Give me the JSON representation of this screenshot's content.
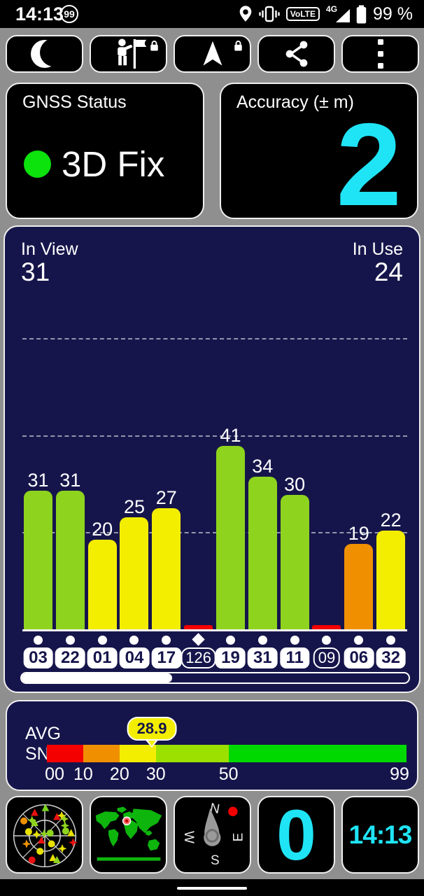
{
  "status_bar": {
    "time": "14:13",
    "battery_badge": "99",
    "volte": "VoLTE",
    "network": "4G",
    "battery_percent": "99 %",
    "icons": [
      "location-icon",
      "vibrate-icon",
      "signal-strength-icon",
      "battery-icon"
    ]
  },
  "toolbar": {
    "buttons": [
      {
        "name": "night-mode",
        "icon": "moon-icon",
        "locked": false
      },
      {
        "name": "waypoints",
        "icon": "person-flag-icon",
        "locked": true
      },
      {
        "name": "navigation",
        "icon": "nav-arrow-icon",
        "locked": true
      },
      {
        "name": "share",
        "icon": "share-icon",
        "locked": false
      },
      {
        "name": "overflow-menu",
        "icon": "overflow-dots-icon",
        "locked": false
      }
    ]
  },
  "gnss_card": {
    "title": "GNSS Status",
    "status": "3D Fix",
    "dot_color": "#0ce20c"
  },
  "accuracy_card": {
    "title": "Accuracy (± m)",
    "value": "2",
    "value_color": "#1fe4f5"
  },
  "chart_data": {
    "type": "bar",
    "in_view_label": "In View",
    "in_view": 31,
    "in_use_label": "In Use",
    "in_use": 24,
    "categories": [
      "03",
      "22",
      "01",
      "04",
      "17",
      "126",
      "19",
      "31",
      "11",
      "09",
      "06",
      "32"
    ],
    "values": [
      31,
      31,
      20,
      25,
      27,
      1,
      41,
      34,
      30,
      1,
      19,
      22
    ],
    "ylim": [
      0,
      73
    ],
    "gridlines_at": [
      22,
      43,
      65
    ],
    "grid": true,
    "scrollbar_fraction": 0.39,
    "satellites": [
      {
        "id": "03",
        "snr": 31,
        "label": "31",
        "color": "#8ed41e",
        "used": true,
        "marker": "circle"
      },
      {
        "id": "22",
        "snr": 31,
        "label": "31",
        "color": "#8ed41e",
        "used": true,
        "marker": "circle"
      },
      {
        "id": "01",
        "snr": 20,
        "label": "20",
        "color": "#f3ee00",
        "used": true,
        "marker": "circle"
      },
      {
        "id": "04",
        "snr": 25,
        "label": "25",
        "color": "#f3ee00",
        "used": true,
        "marker": "circle"
      },
      {
        "id": "17",
        "snr": 27,
        "label": "27",
        "color": "#f3ee00",
        "used": true,
        "marker": "circle"
      },
      {
        "id": "126",
        "snr": 1,
        "label": null,
        "color": "#f50000",
        "used": false,
        "marker": "diamond"
      },
      {
        "id": "19",
        "snr": 41,
        "label": "41",
        "color": "#8ed41e",
        "used": true,
        "marker": "circle"
      },
      {
        "id": "31",
        "snr": 34,
        "label": "34",
        "color": "#8ed41e",
        "used": true,
        "marker": "circle"
      },
      {
        "id": "11",
        "snr": 30,
        "label": "30",
        "color": "#8ed41e",
        "used": true,
        "marker": "circle"
      },
      {
        "id": "09",
        "snr": 1,
        "label": null,
        "color": "#f50000",
        "used": false,
        "marker": "circle"
      },
      {
        "id": "06",
        "snr": 19,
        "label": "19",
        "color": "#f09000",
        "used": true,
        "marker": "circle"
      },
      {
        "id": "32",
        "snr": 22,
        "label": "22",
        "color": "#f3ee00",
        "used": true,
        "marker": "circle"
      }
    ]
  },
  "avg_snr": {
    "label_top": "AVG",
    "label_bottom": "SNR",
    "value": 28.9,
    "range": [
      0,
      99
    ],
    "ticks": [
      {
        "label": "00",
        "value": 0
      },
      {
        "label": "10",
        "value": 10
      },
      {
        "label": "20",
        "value": 20
      },
      {
        "label": "30",
        "value": 30
      },
      {
        "label": "50",
        "value": 50
      },
      {
        "label": "99",
        "value": 99
      }
    ],
    "segments": [
      {
        "from": 0,
        "to": 10,
        "color": "#f50000"
      },
      {
        "from": 10,
        "to": 20,
        "color": "#f09000"
      },
      {
        "from": 20,
        "to": 30,
        "color": "#f3ee00"
      },
      {
        "from": 30,
        "to": 50,
        "color": "#9ce000"
      },
      {
        "from": 50,
        "to": 99,
        "color": "#00d900"
      }
    ]
  },
  "tiles": {
    "skyview": {
      "markers": [
        {
          "s": "triangle",
          "c": "#e81010",
          "x": 40,
          "y": 22
        },
        {
          "s": "triangle",
          "c": "#7ad41e",
          "x": 56,
          "y": 15
        },
        {
          "s": "triangle",
          "c": "#e81010",
          "x": 73,
          "y": 28
        },
        {
          "s": "star",
          "c": "#e8e000",
          "x": 80,
          "y": 26
        },
        {
          "s": "star",
          "c": "#9ad41e",
          "x": 84,
          "y": 31
        },
        {
          "s": "circle",
          "c": "#f09000",
          "x": 24,
          "y": 34
        },
        {
          "s": "star",
          "c": "#8ed41e",
          "x": 36,
          "y": 33
        },
        {
          "s": "triangle",
          "c": "#8ed41e",
          "x": 40,
          "y": 37
        },
        {
          "s": "star",
          "c": "#8ed41e",
          "x": 85,
          "y": 41
        },
        {
          "s": "circle",
          "c": "#e8e000",
          "x": 31,
          "y": 50
        },
        {
          "s": "star",
          "c": "#e8e000",
          "x": 43,
          "y": 54
        },
        {
          "s": "star",
          "c": "#8ed41e",
          "x": 54,
          "y": 53
        },
        {
          "s": "circle",
          "c": "#8ed41e",
          "x": 63,
          "y": 52
        },
        {
          "s": "circle",
          "c": "#8ed41e",
          "x": 86,
          "y": 49
        },
        {
          "s": "triangle",
          "c": "#e8e000",
          "x": 94,
          "y": 52
        },
        {
          "s": "star",
          "c": "#e81010",
          "x": 97,
          "y": 66
        },
        {
          "s": "star",
          "c": "#f09000",
          "x": 28,
          "y": 68
        },
        {
          "s": "triangle",
          "c": "#e81010",
          "x": 50,
          "y": 63
        },
        {
          "s": "circle",
          "c": "#e8e000",
          "x": 65,
          "y": 68
        },
        {
          "s": "star",
          "c": "#e8e000",
          "x": 81,
          "y": 75
        },
        {
          "s": "circle",
          "c": "#e8e000",
          "x": 48,
          "y": 79
        },
        {
          "s": "circle",
          "c": "#e81010",
          "x": 36,
          "y": 92
        },
        {
          "s": "triangle",
          "c": "#e8e000",
          "x": 67,
          "y": 89
        },
        {
          "s": "triangle",
          "c": "#8ed41e",
          "x": 73,
          "y": 92
        }
      ]
    },
    "compass": {
      "n": "N",
      "e": "E",
      "s": "S",
      "w": "W"
    },
    "speed": {
      "value": "0"
    },
    "clock": {
      "value": "14:13"
    }
  }
}
